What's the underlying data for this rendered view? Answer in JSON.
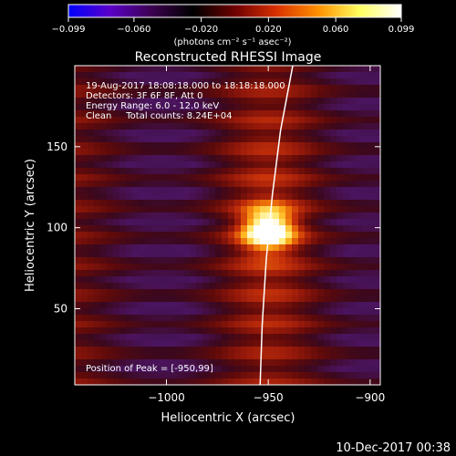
{
  "chart_data": {
    "type": "heatmap",
    "title": "Reconstructed RHESSI Image",
    "xlabel": "Heliocentric X (arcsec)",
    "ylabel": "Heliocentric Y (arcsec)",
    "xlim": [
      -1045,
      -895
    ],
    "ylim": [
      3,
      200
    ],
    "x_ticks": [
      {
        "value": -1000,
        "label": "−1000"
      },
      {
        "value": -950,
        "label": "−950"
      },
      {
        "value": -900,
        "label": "−900"
      }
    ],
    "y_ticks": [
      {
        "value": 50,
        "label": "50"
      },
      {
        "value": 100,
        "label": "100"
      },
      {
        "value": 150,
        "label": "150"
      }
    ],
    "colorbar": {
      "min": -0.099,
      "max": 0.099,
      "ticks": [
        {
          "value": -0.099,
          "label": "−0.099"
        },
        {
          "value": -0.06,
          "label": "−0.060"
        },
        {
          "value": -0.02,
          "label": "−0.020"
        },
        {
          "value": 0.02,
          "label": "0.020"
        },
        {
          "value": 0.06,
          "label": "0.060"
        },
        {
          "value": 0.099,
          "label": "0.099"
        }
      ],
      "units": "(photons cm⁻² s⁻¹ asec⁻²)",
      "colors": [
        "#0000ff",
        "#5a00c8",
        "#3c0050",
        "#000000",
        "#6e0000",
        "#d83000",
        "#ff9000",
        "#ffff60",
        "#ffffff"
      ]
    },
    "annotations": {
      "time_range": "19-Aug-2017 18:08:18.000 to 18:18:18.000",
      "detectors": "Detectors: 3F 6F 8F, Att 0",
      "energy": "Energy Range: 6.0 - 12.0 keV",
      "clean": "Clean     Total counts: 8.24E+04",
      "peak": "Position of Peak = [-950,99]"
    },
    "peak": {
      "x": -950,
      "y": 99
    },
    "limb": [
      {
        "x": -938,
        "y": 200
      },
      {
        "x": -944,
        "y": 160
      },
      {
        "x": -948,
        "y": 120
      },
      {
        "x": -951,
        "y": 80
      },
      {
        "x": -953,
        "y": 40
      },
      {
        "x": -954,
        "y": 3
      }
    ]
  },
  "footer": {
    "date": "10-Dec-2017 00:38"
  }
}
